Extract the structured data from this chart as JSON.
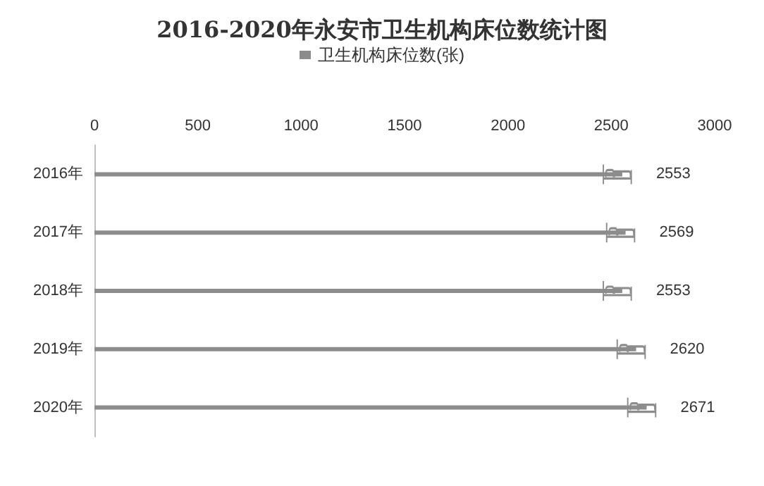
{
  "chart_data": {
    "type": "bar",
    "orientation": "horizontal",
    "title": "2016-2020年永安市卫生机构床位数统计图",
    "categories": [
      "2016年",
      "2017年",
      "2018年",
      "2019年",
      "2020年"
    ],
    "series": [
      {
        "name": "卫生机构床位数(张)",
        "color": "#8c8c8c",
        "values": [
          2553,
          2569,
          2553,
          2620,
          2671
        ]
      }
    ],
    "xlim": [
      0,
      3000
    ],
    "xticks": [
      0,
      500,
      1000,
      1500,
      2000,
      2500,
      3000
    ],
    "data_labels": true,
    "legend": "top",
    "grid": false
  }
}
